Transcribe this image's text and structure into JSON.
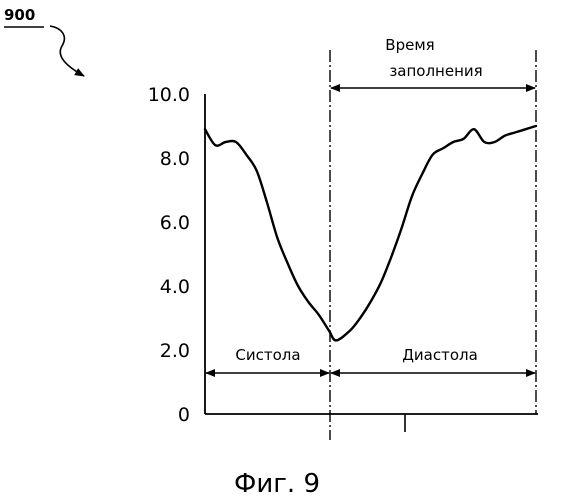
{
  "figure": {
    "ref_number": "900",
    "caption": "Фиг. 9"
  },
  "chart_data": {
    "type": "line",
    "title": "",
    "xlabel": "",
    "ylabel": "",
    "ylim": [
      0,
      10
    ],
    "y_ticks": [
      {
        "value": 0,
        "label": "0"
      },
      {
        "value": 2,
        "label": "2.0"
      },
      {
        "value": 4,
        "label": "4.0"
      },
      {
        "value": 6,
        "label": "6.0"
      },
      {
        "value": 8,
        "label": "8.0"
      },
      {
        "value": 10,
        "label": "10.0"
      }
    ],
    "grid": false,
    "series": [
      {
        "values": [
          [
            0,
            8.9
          ],
          [
            3,
            8.4
          ],
          [
            6,
            8.5
          ],
          [
            9,
            8.5
          ],
          [
            12,
            8.1
          ],
          [
            15,
            7.6
          ],
          [
            18,
            6.6
          ],
          [
            21,
            5.5
          ],
          [
            24,
            4.7
          ],
          [
            27,
            4.0
          ],
          [
            30,
            3.5
          ],
          [
            33,
            3.1
          ],
          [
            36,
            2.6
          ],
          [
            38,
            2.3
          ],
          [
            42,
            2.6
          ],
          [
            45,
            3.0
          ],
          [
            48,
            3.5
          ],
          [
            51,
            4.1
          ],
          [
            54,
            4.9
          ],
          [
            57,
            5.8
          ],
          [
            60,
            6.8
          ],
          [
            63,
            7.5
          ],
          [
            66,
            8.1
          ],
          [
            69,
            8.3
          ],
          [
            72,
            8.5
          ],
          [
            75,
            8.6
          ],
          [
            78,
            8.9
          ],
          [
            81,
            8.5
          ],
          [
            84,
            8.5
          ],
          [
            87,
            8.7
          ],
          [
            90,
            8.8
          ],
          [
            93,
            8.9
          ],
          [
            96,
            9.0
          ]
        ]
      }
    ],
    "annotations": {
      "filling_time": "Время\nзаполнения",
      "systole": "Систола",
      "diastole": "Диастола"
    }
  }
}
